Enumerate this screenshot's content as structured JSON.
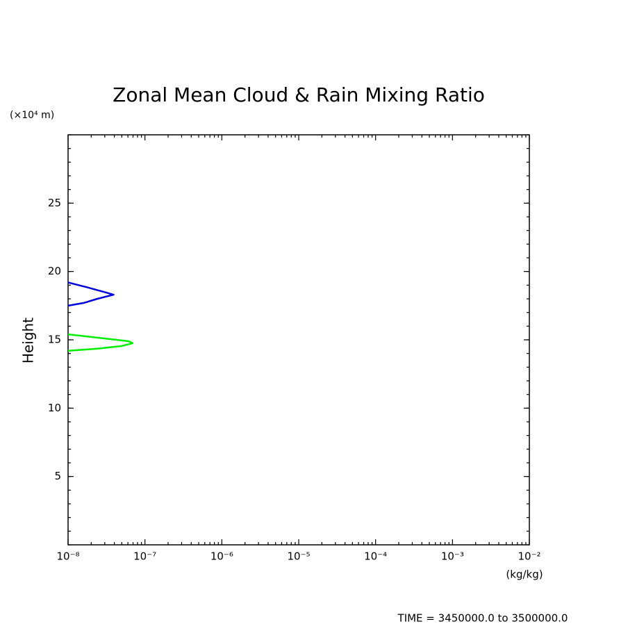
{
  "chart_data": {
    "type": "line",
    "title": "Zonal Mean Cloud & Rain Mixing Ratio",
    "y_unit": "(×10⁴ m)",
    "ylabel": "Height",
    "xlabel": "(kg/kg)",
    "footer": "TIME = 3450000.0 to 3500000.0",
    "xscale": "log",
    "xlim": [
      1e-08,
      0.01
    ],
    "xticks": [
      {
        "value": 1e-08,
        "label": "10⁻⁸"
      },
      {
        "value": 1e-07,
        "label": "10⁻⁷"
      },
      {
        "value": 1e-06,
        "label": "10⁻⁶"
      },
      {
        "value": 1e-05,
        "label": "10⁻⁵"
      },
      {
        "value": 0.0001,
        "label": "10⁻⁴"
      },
      {
        "value": 0.001,
        "label": "10⁻³"
      },
      {
        "value": 0.01,
        "label": "10⁻²"
      }
    ],
    "ylim": [
      0,
      30
    ],
    "yticks": [
      5,
      10,
      15,
      20,
      25
    ],
    "series": [
      {
        "color": "#0000dd",
        "x": [
          1e-08,
          1.75e-08,
          2.95e-08,
          3.9e-08,
          2.4e-08,
          1.6e-08,
          1e-08
        ],
        "values": [
          19.2,
          18.85,
          18.5,
          18.3,
          18.0,
          17.7,
          17.5
        ]
      },
      {
        "color": "#00ee00",
        "x": [
          1e-08,
          2.95e-08,
          6.1e-08,
          6.9e-08,
          5e-08,
          2.4e-08,
          1e-08
        ],
        "values": [
          15.4,
          15.1,
          14.9,
          14.75,
          14.55,
          14.35,
          14.2
        ]
      }
    ]
  }
}
